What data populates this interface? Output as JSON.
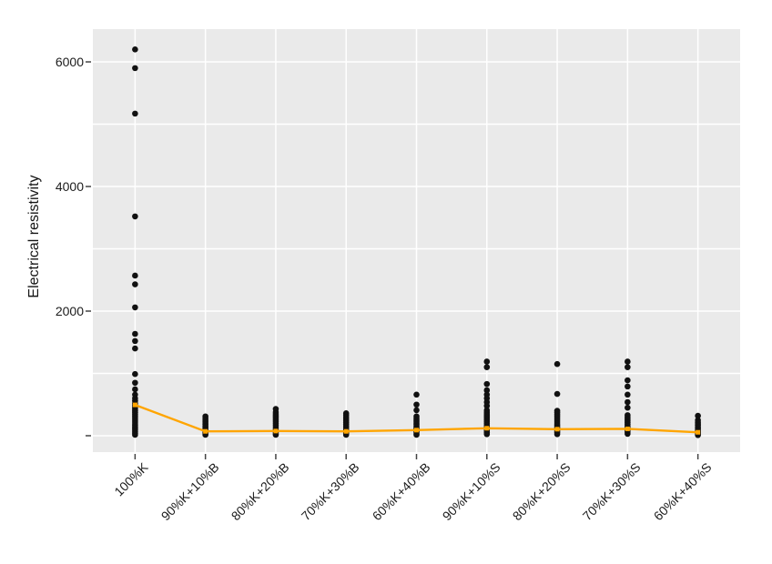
{
  "figure": {
    "background": "#ffffff"
  },
  "chart_data": {
    "type": "scatter",
    "title": "",
    "xlabel": "",
    "ylabel": "Electrical resistivity",
    "categories": [
      "100%K",
      "90%K+10%B",
      "80%K+20%B",
      "70%K+30%B",
      "60%K+40%B",
      "90%K+10%S",
      "80%K+20%S",
      "70%K+30%S",
      "60%K+40%S"
    ],
    "series": [
      {
        "name": "resistivity-samples",
        "type": "strip-scatter",
        "marker": "circle",
        "color": "#111111",
        "points_by_category": [
          [
            6200,
            5900,
            5170,
            3520,
            2570,
            2430,
            2060,
            1635,
            1520,
            1400,
            990,
            850,
            745,
            660,
            600,
            560,
            520,
            490,
            460,
            430,
            400,
            370,
            340,
            310,
            280,
            250,
            220,
            190,
            160,
            130,
            100,
            70,
            40,
            15
          ],
          [
            310,
            280,
            255,
            230,
            205,
            180,
            155,
            130,
            105,
            80,
            55,
            30,
            15
          ],
          [
            430,
            380,
            350,
            320,
            290,
            260,
            230,
            200,
            170,
            140,
            110,
            80,
            55,
            30,
            15
          ],
          [
            360,
            330,
            300,
            270,
            240,
            210,
            180,
            150,
            120,
            90,
            60,
            35,
            15
          ],
          [
            660,
            500,
            410,
            310,
            280,
            255,
            230,
            205,
            180,
            155,
            130,
            105,
            80,
            55,
            30,
            15
          ],
          [
            1190,
            1100,
            830,
            730,
            660,
            600,
            540,
            480,
            410,
            380,
            350,
            320,
            290,
            260,
            230,
            200,
            170,
            140,
            110,
            80,
            50,
            25
          ],
          [
            1150,
            670,
            400,
            370,
            340,
            310,
            280,
            250,
            220,
            190,
            160,
            130,
            100,
            75,
            50,
            25
          ],
          [
            1190,
            1100,
            890,
            790,
            660,
            540,
            450,
            330,
            300,
            270,
            240,
            210,
            180,
            150,
            120,
            90,
            60,
            30
          ],
          [
            320,
            250,
            215,
            190,
            165,
            140,
            115,
            90,
            65,
            45,
            25,
            10
          ]
        ]
      },
      {
        "name": "mean-line",
        "type": "line",
        "marker": "square",
        "color": "#ffa500",
        "values": [
          495,
          70,
          75,
          70,
          90,
          120,
          105,
          110,
          55
        ]
      }
    ],
    "ylim": [
      -263,
      6526
    ],
    "yticks": {
      "labeled": [
        2000,
        4000,
        6000
      ],
      "marks": [
        0,
        2000,
        4000,
        6000
      ],
      "grid_values": [
        0,
        1000,
        2000,
        3000,
        4000,
        5000,
        6000
      ]
    },
    "grid": "on",
    "legend": null,
    "plot_background": "#eaeaea",
    "grid_color": "#ffffff",
    "tick_color": "#444444",
    "text_color": "#1c1c1c"
  }
}
